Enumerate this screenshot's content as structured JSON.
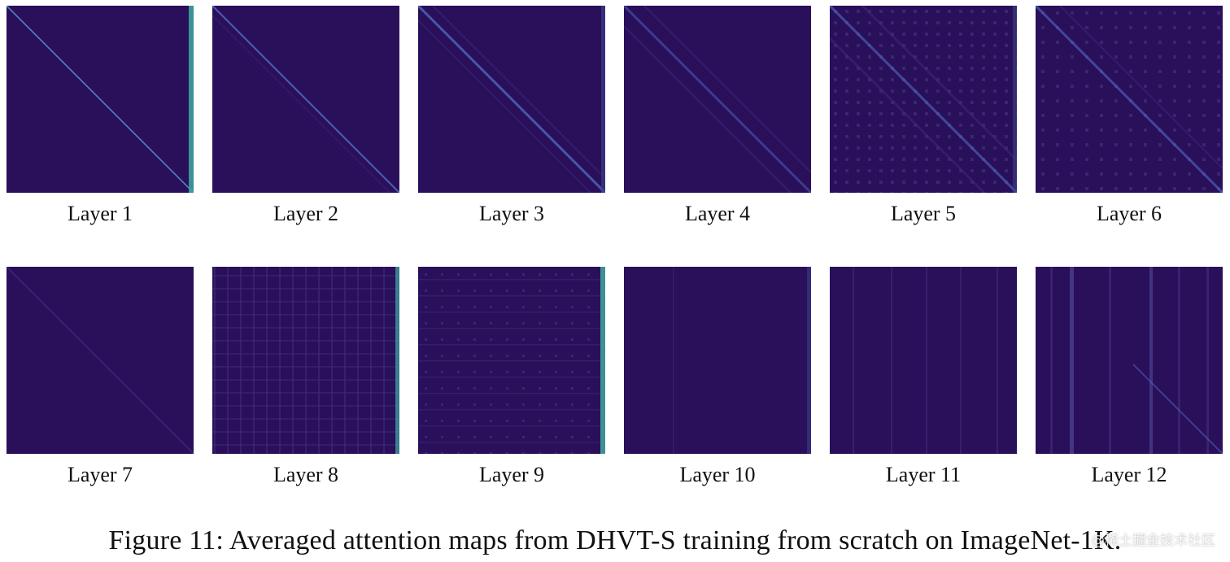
{
  "figure": {
    "layers": [
      {
        "label": "Layer 1"
      },
      {
        "label": "Layer 2"
      },
      {
        "label": "Layer 3"
      },
      {
        "label": "Layer 4"
      },
      {
        "label": "Layer 5"
      },
      {
        "label": "Layer 6"
      },
      {
        "label": "Layer 7"
      },
      {
        "label": "Layer 8"
      },
      {
        "label": "Layer 9"
      },
      {
        "label": "Layer 10"
      },
      {
        "label": "Layer 11"
      },
      {
        "label": "Layer 12"
      }
    ],
    "caption": "Figure 11: Averaged attention maps from DHVT-S training from scratch on ImageNet-1K.",
    "watermark": "@稀土掘金技术社区",
    "colors": {
      "map_background": "#2a0f5a",
      "diagonal": "#5a8fd0",
      "edge_band": "#3fa8a0",
      "texture": "#3e2b7a"
    }
  }
}
